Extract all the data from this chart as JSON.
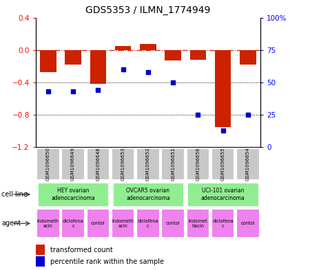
{
  "title": "GDS5353 / ILMN_1774949",
  "samples": [
    "GSM1096650",
    "GSM1096649",
    "GSM1096648",
    "GSM1096653",
    "GSM1096652",
    "GSM1096651",
    "GSM1096656",
    "GSM1096655",
    "GSM1096654"
  ],
  "red_values": [
    -0.27,
    -0.18,
    -0.42,
    0.05,
    0.07,
    -0.13,
    -0.12,
    -0.95,
    -0.18
  ],
  "blue_values": [
    43,
    43,
    44,
    60,
    58,
    50,
    25,
    13,
    25
  ],
  "ylim_left": [
    -1.2,
    0.4
  ],
  "ylim_right": [
    0,
    100
  ],
  "yticks_left": [
    -1.2,
    -0.8,
    -0.4,
    0.0,
    0.4
  ],
  "yticks_right": [
    0,
    25,
    50,
    75,
    100
  ],
  "ytick_labels_right": [
    "0",
    "25",
    "50",
    "75",
    "100%"
  ],
  "cell_line_labels": [
    "HEY ovarian\nadenocarcinoma",
    "OVCAR5 ovarian\nadenocarcinoma",
    "UCI-101 ovarian\nadenocarcinoma"
  ],
  "agent_labels": [
    [
      "indometh\nacin",
      "diclofena\nc",
      "contol"
    ],
    [
      "indometh\nacin",
      "diclofena\nc",
      "contol"
    ],
    [
      "indomet\nhacin",
      "diclofena\nc",
      "contol"
    ]
  ],
  "cell_line_color": "#90EE90",
  "agent_color": "#EE82EE",
  "gsm_bg_color": "#C8C8C8",
  "red_bar_color": "#CC2200",
  "blue_dot_color": "#0000CC",
  "zero_line_color": "#CC2200",
  "grid_color": "#000000",
  "legend_red_label": "transformed count",
  "legend_blue_label": "percentile rank within the sample",
  "bar_width": 0.65
}
